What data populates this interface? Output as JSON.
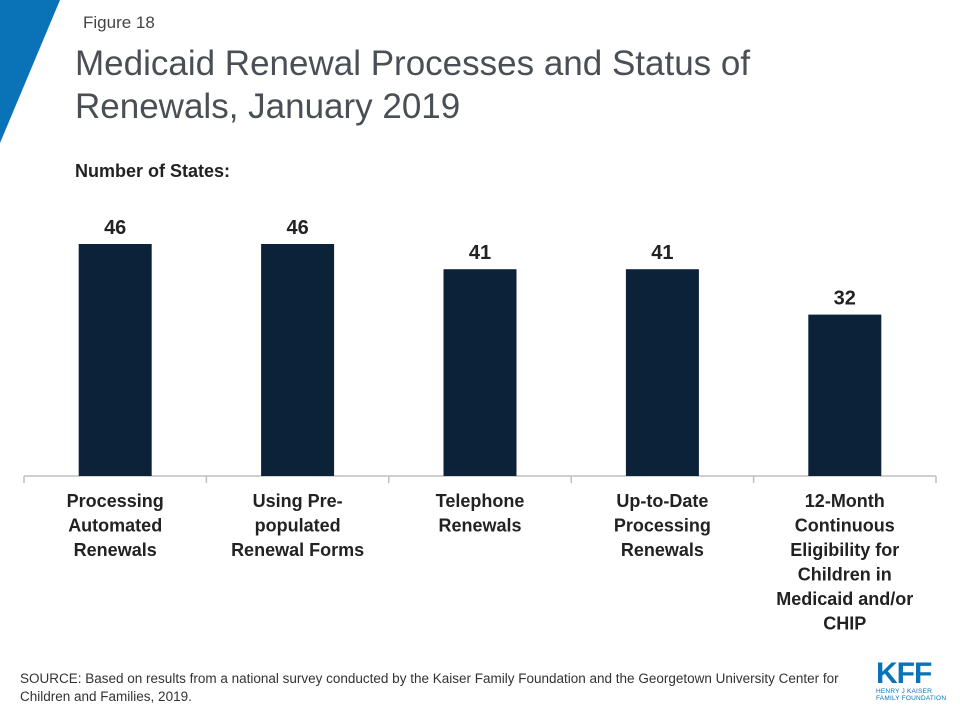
{
  "figure_label": "Figure 18",
  "title": "Medicaid Renewal Processes and Status of Renewals, January 2019",
  "subtitle": "Number of States:",
  "source": "SOURCE: Based on results from a national survey conducted by the Kaiser Family Foundation and the Georgetown University Center for Children and Families, 2019.",
  "logo": {
    "mark": "KFF",
    "line1": "HENRY J KAISER",
    "line2": "FAMILY FOUNDATION"
  },
  "colors": {
    "bar": "#0b2239",
    "accent": "#0a73b8",
    "axis": "#bfbfbf"
  },
  "chart_data": {
    "type": "bar",
    "categories": [
      [
        "Processing",
        "Automated",
        "Renewals"
      ],
      [
        "Using Pre-",
        "populated",
        "Renewal Forms"
      ],
      [
        "Telephone",
        "Renewals"
      ],
      [
        "Up-to-Date",
        "Processing",
        "Renewals"
      ],
      [
        "12-Month",
        "Continuous",
        "Eligibility for",
        "Children in",
        "Medicaid and/or",
        "CHIP"
      ]
    ],
    "values": [
      46,
      46,
      41,
      41,
      32
    ],
    "ylim": [
      0,
      46
    ],
    "grid": false,
    "legend": "none",
    "data_labels": true
  }
}
